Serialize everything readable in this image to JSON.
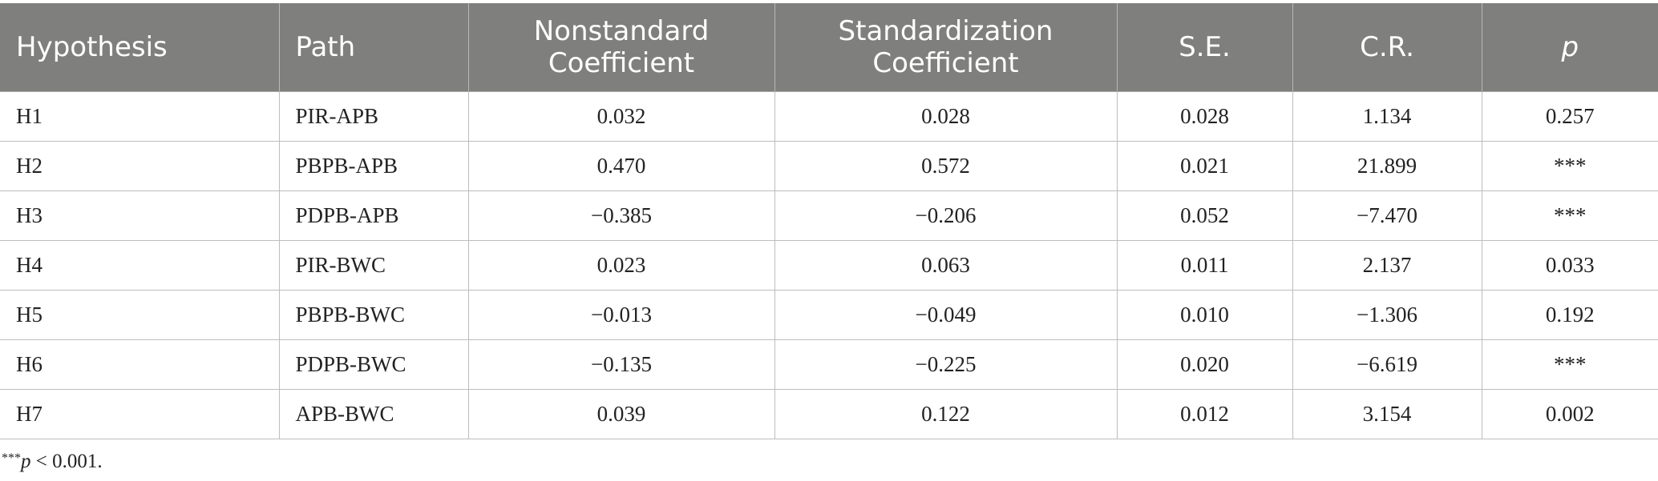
{
  "table": {
    "headers": [
      {
        "line1": "Hypothesis",
        "line2": ""
      },
      {
        "line1": "Path",
        "line2": ""
      },
      {
        "line1": "Nonstandard",
        "line2": "Coefficient"
      },
      {
        "line1": "Standardization",
        "line2": "Coefficient"
      },
      {
        "line1": "S.E.",
        "line2": ""
      },
      {
        "line1": "C.R.",
        "line2": ""
      },
      {
        "line1": "p",
        "line2": ""
      }
    ],
    "rows": [
      [
        "H1",
        "PIR-APB",
        "0.032",
        "0.028",
        "0.028",
        "1.134",
        "0.257"
      ],
      [
        "H2",
        "PBPB-APB",
        "0.470",
        "0.572",
        "0.021",
        "21.899",
        "***"
      ],
      [
        "H3",
        "PDPB-APB",
        "−0.385",
        "−0.206",
        "0.052",
        "−7.470",
        "***"
      ],
      [
        "H4",
        "PIR-BWC",
        "0.023",
        "0.063",
        "0.011",
        "2.137",
        "0.033"
      ],
      [
        "H5",
        "PBPB-BWC",
        "−0.013",
        "−0.049",
        "0.010",
        "−1.306",
        "0.192"
      ],
      [
        "H6",
        "PDPB-BWC",
        "−0.135",
        "−0.225",
        "0.020",
        "−6.619",
        "***"
      ],
      [
        "H7",
        "APB-BWC",
        "0.039",
        "0.122",
        "0.012",
        "3.154",
        "0.002"
      ]
    ]
  },
  "footnote": {
    "stars": "***",
    "p_letter": "p",
    "rest": " < 0.001."
  },
  "colors": {
    "header_bg": "#7f7f7d",
    "header_text": "#ffffff",
    "grid_line": "#bdbdbd"
  }
}
